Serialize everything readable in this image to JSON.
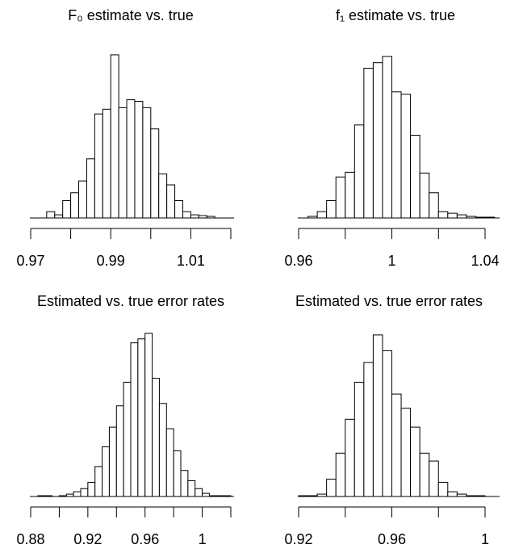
{
  "chart_data": [
    {
      "type": "histogram",
      "title": "F₀ estimate vs. true",
      "bins": [
        0.974,
        0.976,
        0.978,
        0.98,
        0.982,
        0.984,
        0.986,
        0.988,
        0.99,
        0.992,
        0.994,
        0.996,
        0.998,
        1.0,
        1.002,
        1.004,
        1.006,
        1.008,
        1.01,
        1.012,
        1.014,
        1.016
      ],
      "values": [
        8,
        4,
        22,
        32,
        47,
        75,
        132,
        138,
        207,
        140,
        150,
        148,
        140,
        113,
        56,
        42,
        22,
        8,
        4,
        3,
        2
      ],
      "color": "#ffffff",
      "xlim": [
        0.97,
        1.02
      ],
      "ylim": [
        0,
        210
      ],
      "xticks": [
        0.97,
        0.99,
        1.01
      ],
      "minor_xticks": [
        0.98,
        1.0,
        1.02
      ]
    },
    {
      "type": "histogram",
      "title": "f₁ estimate vs. true",
      "bins": [
        0.964,
        0.968,
        0.972,
        0.976,
        0.98,
        0.984,
        0.988,
        0.992,
        0.996,
        1.0,
        1.004,
        1.008,
        1.012,
        1.016,
        1.02,
        1.024,
        1.028,
        1.032,
        1.036,
        1.04,
        1.044
      ],
      "values": [
        2,
        8,
        22,
        52,
        58,
        118,
        190,
        197,
        205,
        160,
        157,
        105,
        57,
        32,
        8,
        6,
        4,
        2,
        1,
        1
      ],
      "color": "#ffffff",
      "xlim": [
        0.96,
        1.04
      ],
      "ylim": [
        0,
        210
      ],
      "xticks": [
        0.96,
        1.0,
        1.04
      ],
      "minor_xticks": [
        0.98,
        1.02
      ]
    },
    {
      "type": "histogram",
      "title": "Estimated vs. true error rates",
      "bins": [
        0.885,
        0.89,
        0.895,
        0.9,
        0.905,
        0.91,
        0.915,
        0.92,
        0.925,
        0.93,
        0.935,
        0.94,
        0.945,
        0.95,
        0.955,
        0.96,
        0.965,
        0.97,
        0.975,
        0.98,
        0.985,
        0.99,
        0.995,
        1.0,
        1.005,
        1.01,
        1.015,
        1.02
      ],
      "values": [
        1,
        1,
        0,
        1,
        3,
        6,
        10,
        18,
        38,
        63,
        88,
        115,
        145,
        195,
        200,
        207,
        150,
        118,
        86,
        58,
        33,
        20,
        10,
        4,
        1,
        1,
        1
      ],
      "color": "#ffffff",
      "xlim": [
        0.88,
        1.02
      ],
      "ylim": [
        0,
        210
      ],
      "xticks": [
        0.88,
        0.92,
        0.96,
        1.0
      ],
      "minor_xticks": [
        0.9,
        0.94,
        0.98,
        1.02
      ]
    },
    {
      "type": "histogram",
      "title": "Estimated vs. true error rates",
      "bins": [
        0.92,
        0.924,
        0.928,
        0.932,
        0.936,
        0.94,
        0.944,
        0.948,
        0.952,
        0.956,
        0.96,
        0.964,
        0.968,
        0.972,
        0.976,
        0.98,
        0.984,
        0.988,
        0.992,
        0.996,
        1.0
      ],
      "values": [
        1,
        1,
        3,
        22,
        55,
        98,
        145,
        170,
        205,
        185,
        130,
        112,
        88,
        55,
        45,
        18,
        6,
        3,
        1,
        1
      ],
      "color": "#ffffff",
      "xlim": [
        0.92,
        1.0
      ],
      "ylim": [
        0,
        210
      ],
      "xticks": [
        0.92,
        0.96,
        1.0
      ],
      "minor_xticks": [
        0.94,
        0.98
      ]
    }
  ]
}
